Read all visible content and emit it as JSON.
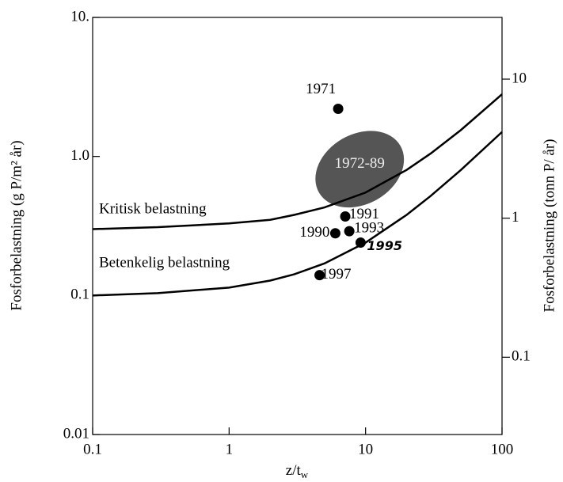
{
  "chart_data": {
    "type": "scatter",
    "xlabel": "z/t",
    "xlabel_sub": "w",
    "ylabel": "Fosforbelastning (g P/m² år)",
    "y2label": "Fosforbelastning (tonn P/ år)",
    "xlog": true,
    "ylog": true,
    "xlim": [
      0.1,
      100
    ],
    "xticks": [
      0.1,
      1,
      10,
      100
    ],
    "ylim": [
      0.01,
      10
    ],
    "yticks": [
      0.01,
      0.1,
      {
        "value": 1,
        "label": "1.0"
      },
      {
        "value": 10,
        "label": "10."
      }
    ],
    "y2lim": [
      0.0278,
      27.8
    ],
    "y2ticks": [
      0.1,
      1,
      10
    ],
    "points": {
      "color": "#000000",
      "labels": [
        "1971",
        "1991",
        "1990",
        "1993",
        "1995",
        "1997"
      ],
      "x": [
        6.3,
        7.1,
        6.0,
        7.6,
        9.2,
        4.6
      ],
      "values": [
        2.2,
        0.37,
        0.28,
        0.29,
        0.24,
        0.14
      ]
    },
    "region": {
      "label": "1972-89",
      "color": "#555555",
      "x": [
        4.1,
        20
      ],
      "y": [
        0.41,
        1.6
      ]
    },
    "curves": [
      {
        "name": "Kritisk belastning",
        "color": "#000000",
        "x": [
          0.1,
          0.3,
          1,
          2,
          3,
          5,
          10,
          20,
          30,
          50,
          100
        ],
        "values": [
          0.3,
          0.31,
          0.33,
          0.35,
          0.38,
          0.43,
          0.55,
          0.8,
          1.05,
          1.55,
          2.8
        ]
      },
      {
        "name": "Betenkelig belastning",
        "color": "#000000",
        "x": [
          0.1,
          0.3,
          1,
          2,
          3,
          5,
          10,
          20,
          30,
          50,
          100
        ],
        "values": [
          0.1,
          0.104,
          0.114,
          0.128,
          0.142,
          0.17,
          0.24,
          0.38,
          0.52,
          0.8,
          1.5
        ]
      }
    ]
  }
}
